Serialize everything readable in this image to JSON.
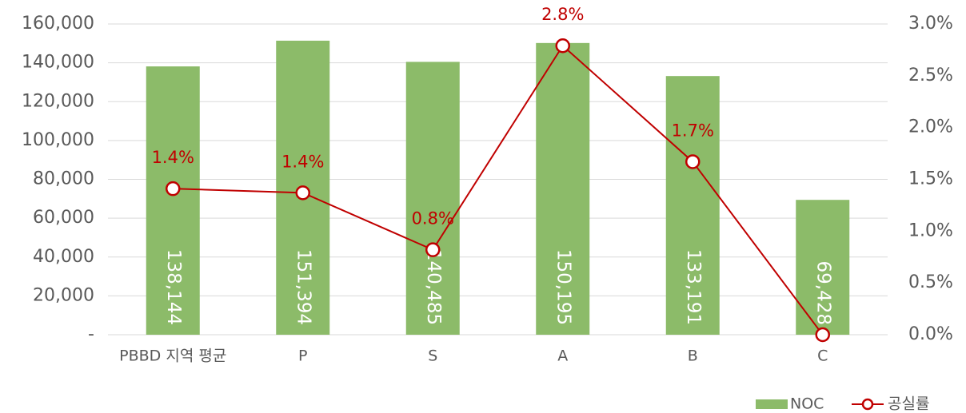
{
  "chart_data": {
    "type": "bar-line",
    "categories": [
      "PBBD 지역 평균",
      "P",
      "S",
      "A",
      "B",
      "C"
    ],
    "series": [
      {
        "name": "NOC",
        "type": "bar",
        "color": "#8cbb69",
        "values": [
          138144,
          151394,
          140485,
          150195,
          133191,
          69428
        ],
        "value_labels": [
          "138,144",
          "151,394",
          "140,485",
          "150,195",
          "133,191",
          "69,428"
        ]
      },
      {
        "name": "공실률",
        "type": "line",
        "axis": "y2",
        "color": "#c00000",
        "values": [
          1.41,
          1.37,
          0.82,
          2.79,
          1.67,
          0
        ],
        "value_labels": [
          "1.4%",
          "1.4%",
          "0.8%",
          "2.8%",
          "1.7%",
          null
        ]
      }
    ],
    "ylim": [
      0,
      160000
    ],
    "yticks": [
      {
        "value": 0,
        "label": "-"
      },
      {
        "value": 20000,
        "label": "20,000"
      },
      {
        "value": 40000,
        "label": "40,000"
      },
      {
        "value": 60000,
        "label": "60,000"
      },
      {
        "value": 80000,
        "label": "80,000"
      },
      {
        "value": 100000,
        "label": "100,000"
      },
      {
        "value": 120000,
        "label": "120,000"
      },
      {
        "value": 140000,
        "label": "140,000"
      },
      {
        "value": 160000,
        "label": "160,000"
      }
    ],
    "y2lim": [
      0,
      3
    ],
    "y2ticks": [
      {
        "value": 0,
        "label": "0.0%"
      },
      {
        "value": 0.5,
        "label": "0.5%"
      },
      {
        "value": 1,
        "label": "1.0%"
      },
      {
        "value": 1.5,
        "label": "1.5%"
      },
      {
        "value": 2,
        "label": "2.0%"
      },
      {
        "value": 2.5,
        "label": "2.5%"
      },
      {
        "value": 3,
        "label": "3.0%"
      }
    ],
    "grid": true,
    "legend": "bottom-right"
  }
}
